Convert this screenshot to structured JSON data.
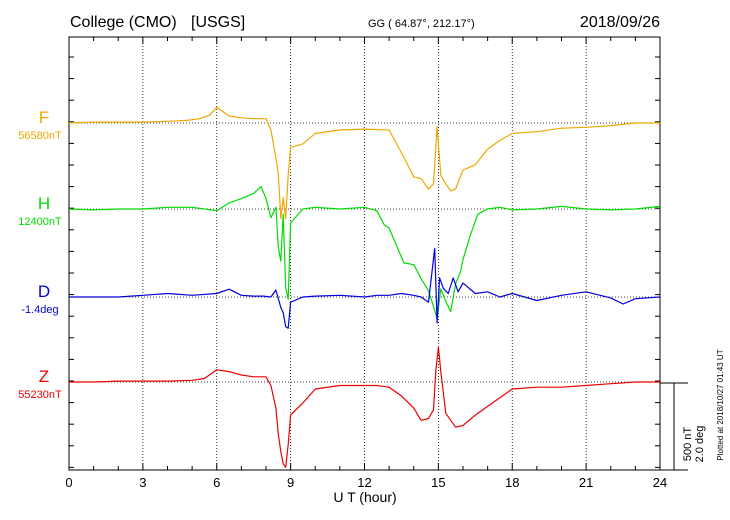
{
  "chart_data": {
    "type": "line",
    "station": "College (CMO)",
    "network": "[USGS]",
    "coordinates": "GG ( 64.87°, 212.17°)",
    "date": "2018/09/26",
    "xlabel": "U T (hour)",
    "xlim": [
      0,
      24
    ],
    "x_ticks": [
      "0",
      "3",
      "6",
      "9",
      "12",
      "15",
      "18",
      "21",
      "24"
    ],
    "grid": true,
    "scale_labels": [
      "500 nT",
      "2.0 deg"
    ],
    "plotted_note": "Plotted at 2018/10/27 01:43 UT",
    "series": [
      {
        "name": "F",
        "baseline": "56580nT",
        "color": "#f0a800",
        "units": "nT",
        "x": [
          0,
          1,
          2,
          3,
          4,
          4.8,
          5.3,
          5.7,
          6.0,
          6.5,
          7.0,
          7.5,
          8.0,
          8.2,
          8.4,
          8.5,
          8.6,
          8.7,
          8.8,
          8.9,
          9.0,
          9.5,
          10,
          11,
          12,
          13,
          13.5,
          14,
          14.3,
          14.6,
          14.8,
          14.95,
          15.1,
          15.3,
          15.5,
          15.7,
          16,
          16.5,
          17,
          17.5,
          18,
          19,
          20,
          21,
          22,
          23,
          24
        ],
        "values": [
          0,
          5,
          5,
          5,
          10,
          15,
          25,
          45,
          90,
          40,
          30,
          25,
          25,
          -40,
          -200,
          -290,
          -550,
          -430,
          -550,
          -300,
          -140,
          -120,
          -60,
          -40,
          -35,
          -40,
          -170,
          -310,
          -320,
          -380,
          -350,
          -20,
          -300,
          -350,
          -390,
          -380,
          -270,
          -240,
          -150,
          -100,
          -60,
          -50,
          -30,
          -25,
          -15,
          0,
          0
        ]
      },
      {
        "name": "H",
        "baseline": "12400nT",
        "color": "#00dd00",
        "units": "nT",
        "x": [
          0,
          1,
          2,
          3,
          4,
          5,
          6,
          6.5,
          7,
          7.5,
          7.8,
          8.0,
          8.2,
          8.4,
          8.5,
          8.6,
          8.7,
          8.8,
          8.9,
          9.0,
          9.5,
          10,
          11,
          12,
          12.5,
          12.8,
          13,
          13.3,
          13.6,
          14.0,
          14.3,
          14.6,
          14.8,
          14.95,
          15.1,
          15.3,
          15.5,
          15.7,
          15.9,
          16,
          16.3,
          16.6,
          17,
          17.5,
          18,
          19,
          20,
          21,
          22,
          23,
          24
        ],
        "values": [
          0,
          -5,
          0,
          0,
          10,
          10,
          -10,
          35,
          60,
          90,
          130,
          60,
          -50,
          10,
          -220,
          -300,
          -30,
          -450,
          -520,
          -80,
          0,
          10,
          0,
          10,
          -10,
          -90,
          -110,
          -210,
          -310,
          -320,
          -400,
          -470,
          -560,
          -630,
          -460,
          -530,
          -590,
          -430,
          -360,
          -290,
          -150,
          -30,
          0,
          10,
          -5,
          0,
          15,
          0,
          -5,
          0,
          15
        ]
      },
      {
        "name": "D",
        "baseline": "-1.4deg",
        "color": "#0000dd",
        "units": "deg",
        "x": [
          0,
          1,
          2,
          3,
          4,
          5,
          6,
          6.5,
          7,
          7.5,
          7.9,
          8.2,
          8.4,
          8.6,
          8.7,
          8.8,
          8.9,
          9.0,
          9.5,
          10,
          11,
          12,
          12.5,
          13,
          13.5,
          14,
          14.3,
          14.6,
          14.85,
          14.95,
          15.05,
          15.2,
          15.4,
          15.6,
          15.8,
          16,
          16.5,
          17,
          17.5,
          18,
          18.5,
          19,
          20,
          21,
          22,
          22.5,
          23,
          24
        ],
        "values": [
          0,
          0,
          0,
          10,
          20,
          10,
          20,
          45,
          10,
          5,
          5,
          0,
          40,
          -60,
          -90,
          -170,
          -180,
          -30,
          0,
          5,
          10,
          0,
          10,
          10,
          20,
          10,
          0,
          -30,
          280,
          -150,
          110,
          50,
          20,
          110,
          30,
          80,
          20,
          30,
          0,
          20,
          0,
          -20,
          10,
          30,
          -5,
          -40,
          -10,
          0
        ]
      },
      {
        "name": "Z",
        "baseline": "55230nT",
        "color": "#ee0000",
        "units": "nT",
        "x": [
          0,
          1,
          2,
          3,
          4,
          5,
          5.5,
          6.0,
          6.5,
          7.0,
          7.5,
          8.0,
          8.2,
          8.4,
          8.5,
          8.6,
          8.7,
          8.8,
          8.9,
          9.0,
          9.5,
          10,
          11,
          12,
          12.5,
          13,
          13.5,
          14,
          14.3,
          14.6,
          14.8,
          14.9,
          15.0,
          15.1,
          15.3,
          15.5,
          15.7,
          16,
          16.5,
          17,
          17.5,
          18,
          19,
          20,
          21,
          22,
          23,
          24
        ],
        "values": [
          0,
          0,
          5,
          5,
          5,
          10,
          20,
          70,
          60,
          40,
          30,
          30,
          -20,
          -150,
          -300,
          -400,
          -470,
          -490,
          -360,
          -190,
          -120,
          -40,
          -20,
          -20,
          -20,
          -30,
          -80,
          -150,
          -220,
          -210,
          -160,
          70,
          200,
          60,
          -180,
          -220,
          -260,
          -250,
          -190,
          -140,
          -90,
          -40,
          -30,
          -30,
          -20,
          -10,
          0,
          0
        ]
      }
    ]
  }
}
